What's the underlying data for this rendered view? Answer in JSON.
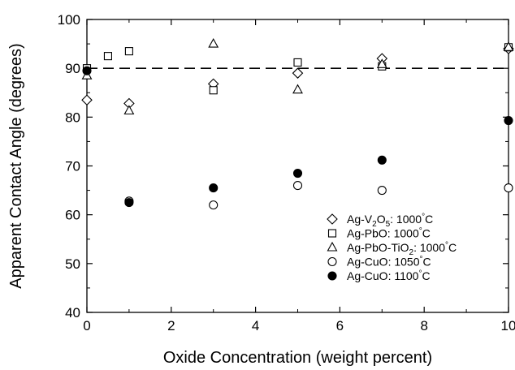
{
  "chart_data": {
    "type": "scatter",
    "xlabel": "Oxide Concentration (weight percent)",
    "ylabel": "Apparent Contact Angle (degrees)",
    "xlim": [
      0,
      10
    ],
    "ylim": [
      40,
      100
    ],
    "x_ticks": [
      "0",
      "2",
      "4",
      "6",
      "8",
      "10"
    ],
    "y_ticks": [
      "40",
      "50",
      "60",
      "70",
      "80",
      "90",
      "100"
    ],
    "reference_line": {
      "y": 90,
      "style": "dashed"
    },
    "legend_position": "bottom-right",
    "series": [
      {
        "name": "Ag-V2O5: 1000°C",
        "label_parts": [
          "Ag-V",
          "2",
          "O",
          "5",
          ": 1000",
          "°",
          "C"
        ],
        "marker": "diamond-open",
        "points": [
          [
            0,
            83.5
          ],
          [
            1,
            82.8
          ],
          [
            3,
            86.8
          ],
          [
            5,
            89.0
          ],
          [
            7,
            92.0
          ],
          [
            10,
            94.0
          ]
        ]
      },
      {
        "name": "Ag-PbO: 1000°C",
        "label_parts": [
          "Ag-PbO: 1000",
          "°",
          "C"
        ],
        "marker": "square-open",
        "points": [
          [
            0,
            90.0
          ],
          [
            0.5,
            92.5
          ],
          [
            1,
            93.5
          ],
          [
            3,
            85.5
          ],
          [
            5,
            91.2
          ],
          [
            7,
            90.4
          ],
          [
            10,
            94.3
          ]
        ]
      },
      {
        "name": "Ag-PbO-TiO2: 1000°C",
        "label_parts": [
          "Ag-PbO-TiO",
          "2",
          ": 1000",
          "°",
          "C"
        ],
        "marker": "triangle-open",
        "points": [
          [
            0,
            88.5
          ],
          [
            1,
            81.3
          ],
          [
            3,
            95.0
          ],
          [
            5,
            85.6
          ],
          [
            7,
            90.8
          ],
          [
            10,
            94.3
          ]
        ]
      },
      {
        "name": "Ag-CuO: 1050°C",
        "label_parts": [
          "Ag-CuO: 1050",
          "°",
          "C"
        ],
        "marker": "circle-open",
        "points": [
          [
            1,
            62.8
          ],
          [
            3,
            62.0
          ],
          [
            5,
            66.0
          ],
          [
            7,
            65.0
          ],
          [
            10,
            65.5
          ]
        ]
      },
      {
        "name": "Ag-CuO: 1100°C",
        "label_parts": [
          "Ag-CuO: 1100",
          "°",
          "C"
        ],
        "marker": "circle-filled",
        "points": [
          [
            0,
            89.5
          ],
          [
            1,
            62.5
          ],
          [
            3,
            65.5
          ],
          [
            5,
            68.5
          ],
          [
            7,
            71.2
          ],
          [
            10,
            79.3
          ]
        ]
      }
    ]
  }
}
